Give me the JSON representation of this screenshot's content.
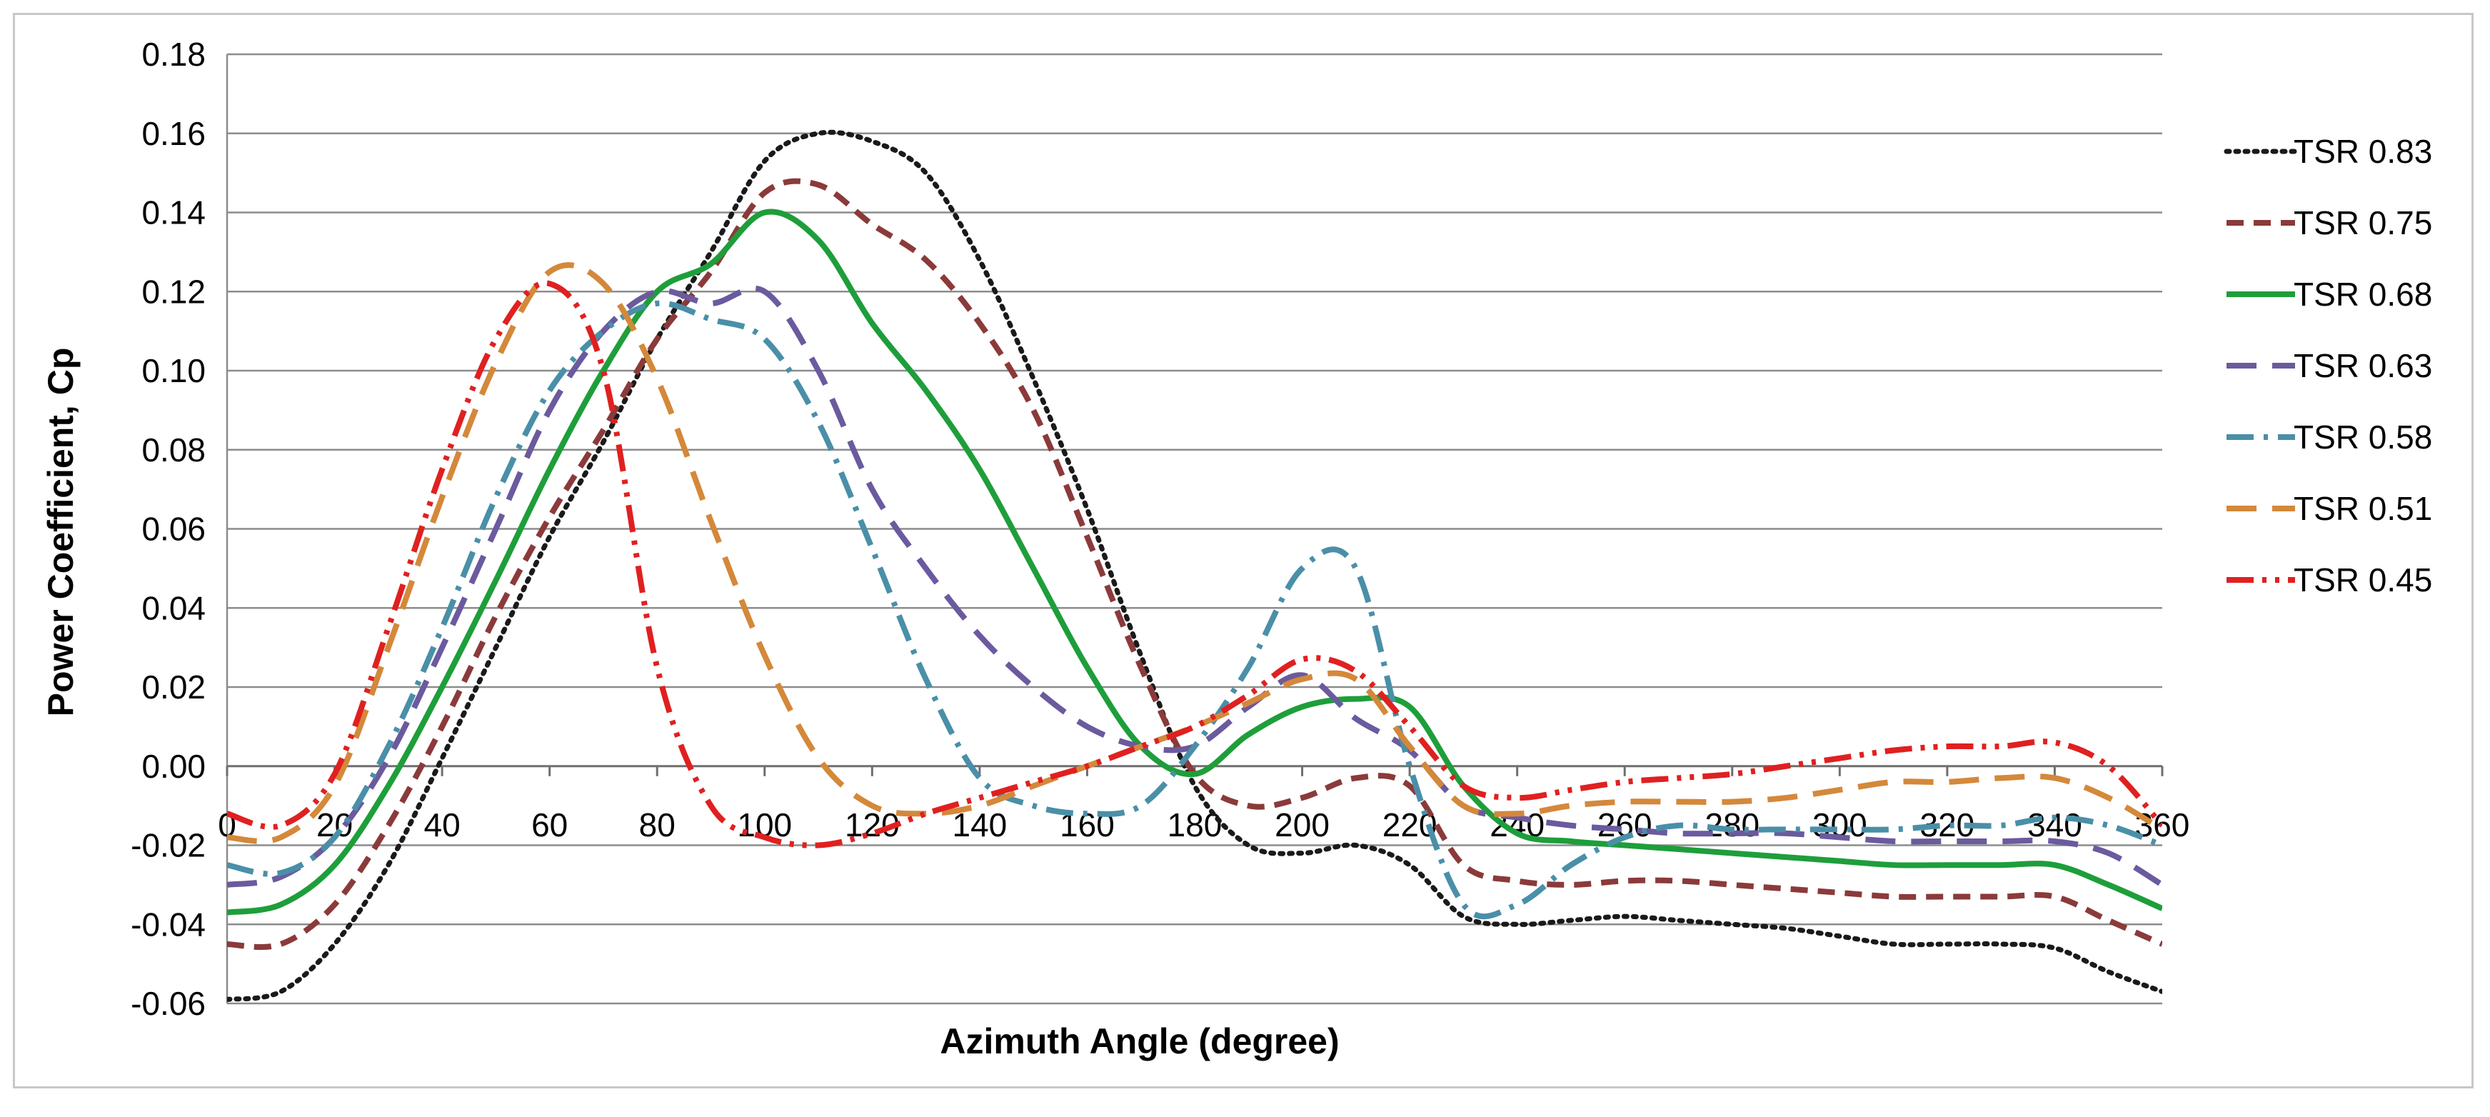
{
  "chart_data": {
    "type": "line",
    "title": "",
    "xlabel": "Azimuth Angle (degree)",
    "ylabel": "Power Coefficient, Cp",
    "xlim": [
      0,
      360
    ],
    "ylim": [
      -0.06,
      0.18
    ],
    "grid": "horizontal",
    "legend_position": "right",
    "x_ticks": [
      0,
      20,
      40,
      60,
      80,
      100,
      120,
      140,
      160,
      180,
      200,
      220,
      240,
      260,
      280,
      300,
      320,
      340,
      360
    ],
    "x_tick_labels": [
      "0",
      "20",
      "40",
      "60",
      "80",
      "100",
      "120",
      "140",
      "160",
      "180",
      "200",
      "220",
      "240",
      "260",
      "280",
      "300",
      "320",
      "340",
      "360"
    ],
    "y_ticks": [
      -0.06,
      -0.04,
      -0.02,
      0.0,
      0.02,
      0.04,
      0.06,
      0.08,
      0.1,
      0.12,
      0.14,
      0.16,
      0.18
    ],
    "y_tick_labels": [
      "-0.06",
      "-0.04",
      "-0.02",
      "0.00",
      "0.02",
      "0.04",
      "0.06",
      "0.08",
      "0.10",
      "0.12",
      "0.14",
      "0.16",
      "0.18"
    ],
    "x": [
      0,
      10,
      20,
      30,
      40,
      50,
      60,
      70,
      80,
      90,
      100,
      110,
      120,
      130,
      140,
      150,
      160,
      170,
      180,
      190,
      200,
      210,
      220,
      230,
      240,
      250,
      260,
      270,
      280,
      290,
      300,
      310,
      320,
      330,
      340,
      350,
      360
    ],
    "series": [
      {
        "name": "TSR 0.83",
        "color": "#1a1a1a",
        "dash": "dot",
        "values": [
          -0.059,
          -0.057,
          -0.045,
          -0.025,
          0.002,
          0.03,
          0.058,
          0.082,
          0.108,
          0.13,
          0.153,
          0.16,
          0.158,
          0.15,
          0.128,
          0.098,
          0.065,
          0.028,
          -0.005,
          -0.02,
          -0.022,
          -0.02,
          -0.025,
          -0.038,
          -0.04,
          -0.039,
          -0.038,
          -0.039,
          -0.04,
          -0.041,
          -0.043,
          -0.045,
          -0.045,
          -0.045,
          -0.046,
          -0.052,
          -0.057
        ]
      },
      {
        "name": "TSR 0.75",
        "color": "#8b3a3a",
        "dash": "dash",
        "values": [
          -0.045,
          -0.045,
          -0.035,
          -0.015,
          0.01,
          0.038,
          0.063,
          0.085,
          0.108,
          0.125,
          0.145,
          0.147,
          0.137,
          0.128,
          0.112,
          0.09,
          0.058,
          0.025,
          -0.002,
          -0.01,
          -0.008,
          -0.003,
          -0.005,
          -0.025,
          -0.029,
          -0.03,
          -0.029,
          -0.029,
          -0.03,
          -0.031,
          -0.032,
          -0.033,
          -0.033,
          -0.033,
          -0.033,
          -0.039,
          -0.045
        ]
      },
      {
        "name": "TSR 0.68",
        "color": "#1e9e3a",
        "dash": "solid",
        "values": [
          -0.037,
          -0.035,
          -0.025,
          -0.005,
          0.02,
          0.047,
          0.075,
          0.1,
          0.12,
          0.127,
          0.14,
          0.133,
          0.112,
          0.095,
          0.075,
          0.05,
          0.025,
          0.005,
          -0.002,
          0.008,
          0.015,
          0.017,
          0.015,
          -0.005,
          -0.017,
          -0.019,
          -0.02,
          -0.021,
          -0.022,
          -0.023,
          -0.024,
          -0.025,
          -0.025,
          -0.025,
          -0.025,
          -0.03,
          -0.036
        ]
      },
      {
        "name": "TSR 0.63",
        "color": "#6b5a9e",
        "dash": "longdash",
        "values": [
          -0.03,
          -0.028,
          -0.018,
          0.002,
          0.03,
          0.06,
          0.09,
          0.11,
          0.12,
          0.117,
          0.12,
          0.1,
          0.07,
          0.05,
          0.033,
          0.02,
          0.01,
          0.005,
          0.005,
          0.015,
          0.023,
          0.012,
          0.004,
          -0.01,
          -0.013,
          -0.015,
          -0.016,
          -0.017,
          -0.017,
          -0.017,
          -0.018,
          -0.019,
          -0.019,
          -0.019,
          -0.019,
          -0.022,
          -0.03
        ]
      },
      {
        "name": "TSR 0.58",
        "color": "#4a8fa8",
        "dash": "dashdot",
        "values": [
          -0.025,
          -0.027,
          -0.018,
          0.005,
          0.035,
          0.068,
          0.095,
          0.11,
          0.117,
          0.113,
          0.108,
          0.087,
          0.055,
          0.022,
          -0.003,
          -0.01,
          -0.012,
          -0.01,
          0.005,
          0.025,
          0.05,
          0.05,
          0.0,
          -0.035,
          -0.035,
          -0.025,
          -0.018,
          -0.015,
          -0.016,
          -0.016,
          -0.016,
          -0.016,
          -0.015,
          -0.015,
          -0.013,
          -0.015,
          -0.02
        ]
      },
      {
        "name": "TSR 0.51",
        "color": "#d4883a",
        "dash": "longdash",
        "values": [
          -0.018,
          -0.018,
          -0.005,
          0.03,
          0.068,
          0.102,
          0.125,
          0.122,
          0.098,
          0.062,
          0.028,
          0.002,
          -0.01,
          -0.012,
          -0.01,
          -0.005,
          0.0,
          0.005,
          0.01,
          0.016,
          0.022,
          0.022,
          0.005,
          -0.01,
          -0.012,
          -0.01,
          -0.009,
          -0.009,
          -0.009,
          -0.008,
          -0.006,
          -0.004,
          -0.004,
          -0.003,
          -0.003,
          -0.008,
          -0.016
        ]
      },
      {
        "name": "TSR 0.45",
        "color": "#e02020",
        "dash": "dashdotdot",
        "values": [
          -0.012,
          -0.015,
          -0.002,
          0.035,
          0.075,
          0.108,
          0.122,
          0.1,
          0.025,
          -0.01,
          -0.018,
          -0.02,
          -0.017,
          -0.012,
          -0.008,
          -0.004,
          0.0,
          0.005,
          0.01,
          0.018,
          0.027,
          0.024,
          0.01,
          -0.005,
          -0.008,
          -0.006,
          -0.004,
          -0.003,
          -0.002,
          0.0,
          0.002,
          0.004,
          0.005,
          0.005,
          0.006,
          0.0,
          -0.015
        ]
      }
    ]
  }
}
